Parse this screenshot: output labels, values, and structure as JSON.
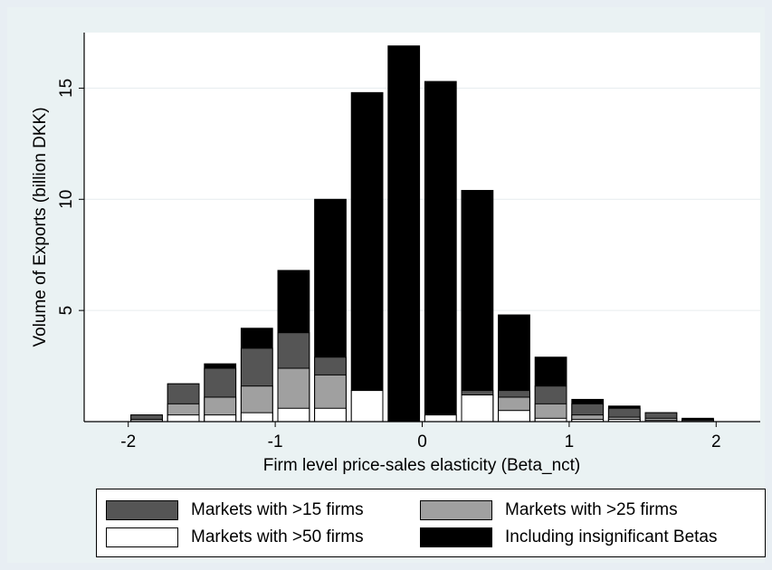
{
  "chart_data": {
    "type": "bar",
    "ylabel": "Volume of Exports (billion DKK)",
    "xlabel": "Firm level price-sales elasticity (Beta_nct)",
    "xlim": [
      -2.3,
      2.3
    ],
    "ylim": [
      0,
      17.5
    ],
    "xticks": [
      -2,
      -1,
      0,
      1,
      2
    ],
    "xtick_labels": [
      "-2",
      "-1",
      "0",
      "1",
      "2"
    ],
    "yticks": [
      5,
      10,
      15
    ],
    "ytick_labels": [
      "5",
      "10",
      "15"
    ],
    "grid": true,
    "bin_width": 0.25,
    "bins": [
      -1.875,
      -1.625,
      -1.375,
      -1.125,
      -0.875,
      -0.625,
      -0.375,
      -0.125,
      0.125,
      0.375,
      0.625,
      0.875,
      1.125,
      1.375,
      1.625,
      1.875
    ],
    "series": [
      {
        "name": "Including insignificant Betas",
        "color": "#000000",
        "values": [
          0.3,
          1.7,
          2.6,
          4.2,
          6.8,
          10.0,
          14.8,
          16.9,
          15.3,
          10.4,
          4.8,
          2.9,
          1.0,
          0.7,
          0.4,
          0.15
        ]
      },
      {
        "name": "Markets with >15 firms",
        "color": "#555555",
        "values": [
          0.3,
          1.7,
          2.4,
          3.3,
          4.0,
          2.9,
          0.0,
          0.0,
          0.0,
          1.4,
          1.4,
          1.6,
          0.8,
          0.6,
          0.4,
          0.1
        ]
      },
      {
        "name": "Markets with >25 firms",
        "color": "#a0a0a0",
        "values": [
          0.1,
          0.8,
          1.1,
          1.6,
          2.4,
          2.1,
          0.0,
          0.0,
          0.0,
          1.2,
          1.1,
          0.8,
          0.3,
          0.2,
          0.15,
          0.05
        ]
      },
      {
        "name": "Markets with >50 firms",
        "color": "#ffffff",
        "values": [
          0.0,
          0.3,
          0.3,
          0.4,
          0.6,
          0.6,
          1.4,
          0.0,
          0.3,
          1.2,
          0.5,
          0.15,
          0.1,
          0.1,
          0.05,
          0.0
        ]
      }
    ],
    "legend": {
      "position": "bottom",
      "entries": [
        {
          "label": "Markets with >15 firms",
          "color": "#555555"
        },
        {
          "label": "Markets with >25 firms",
          "color": "#a0a0a0"
        },
        {
          "label": "Markets with >50 firms",
          "color": "#ffffff"
        },
        {
          "label": "Including insignificant Betas",
          "color": "#000000"
        }
      ]
    }
  }
}
